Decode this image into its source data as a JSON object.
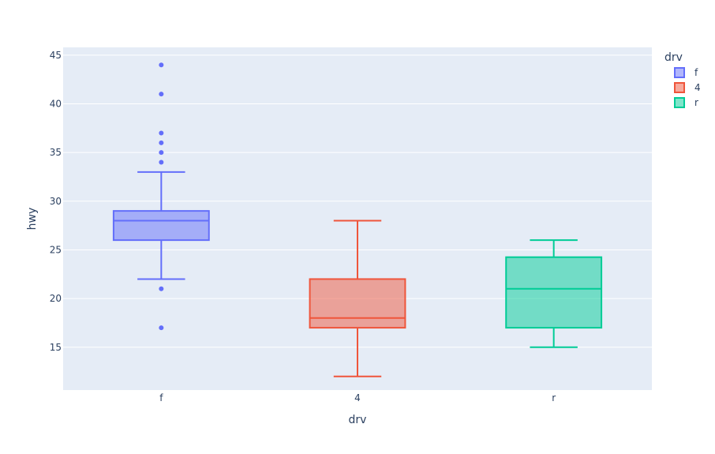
{
  "chart_data": {
    "type": "box",
    "xlabel": "drv",
    "ylabel": "hwy",
    "categories": [
      "f",
      "4",
      "r"
    ],
    "ylim": [
      10.6,
      45.8
    ],
    "yticks": [
      15,
      20,
      25,
      30,
      35,
      40,
      45
    ],
    "grid": true,
    "legend": {
      "title": "drv",
      "placement": "top-right",
      "entries": [
        "f",
        "4",
        "r"
      ]
    },
    "series": [
      {
        "name": "f",
        "category": "f",
        "color": "#636efa",
        "fill": "rgba(99,110,250,0.5)",
        "whisker_low": 22,
        "q1": 26,
        "median": 28,
        "q3": 29,
        "whisker_high": 33,
        "outliers": [
          17,
          21,
          34,
          35,
          36,
          37,
          41,
          44
        ]
      },
      {
        "name": "4",
        "category": "4",
        "color": "#ef553b",
        "fill": "rgba(239,85,59,0.5)",
        "whisker_low": 12,
        "q1": 17,
        "median": 18,
        "q3": 22,
        "whisker_high": 28,
        "outliers": []
      },
      {
        "name": "r",
        "category": "r",
        "color": "#00cc96",
        "fill": "rgba(0,204,150,0.5)",
        "whisker_low": 15,
        "q1": 17,
        "median": 21,
        "q3": 24.25,
        "whisker_high": 26,
        "outliers": []
      }
    ]
  }
}
